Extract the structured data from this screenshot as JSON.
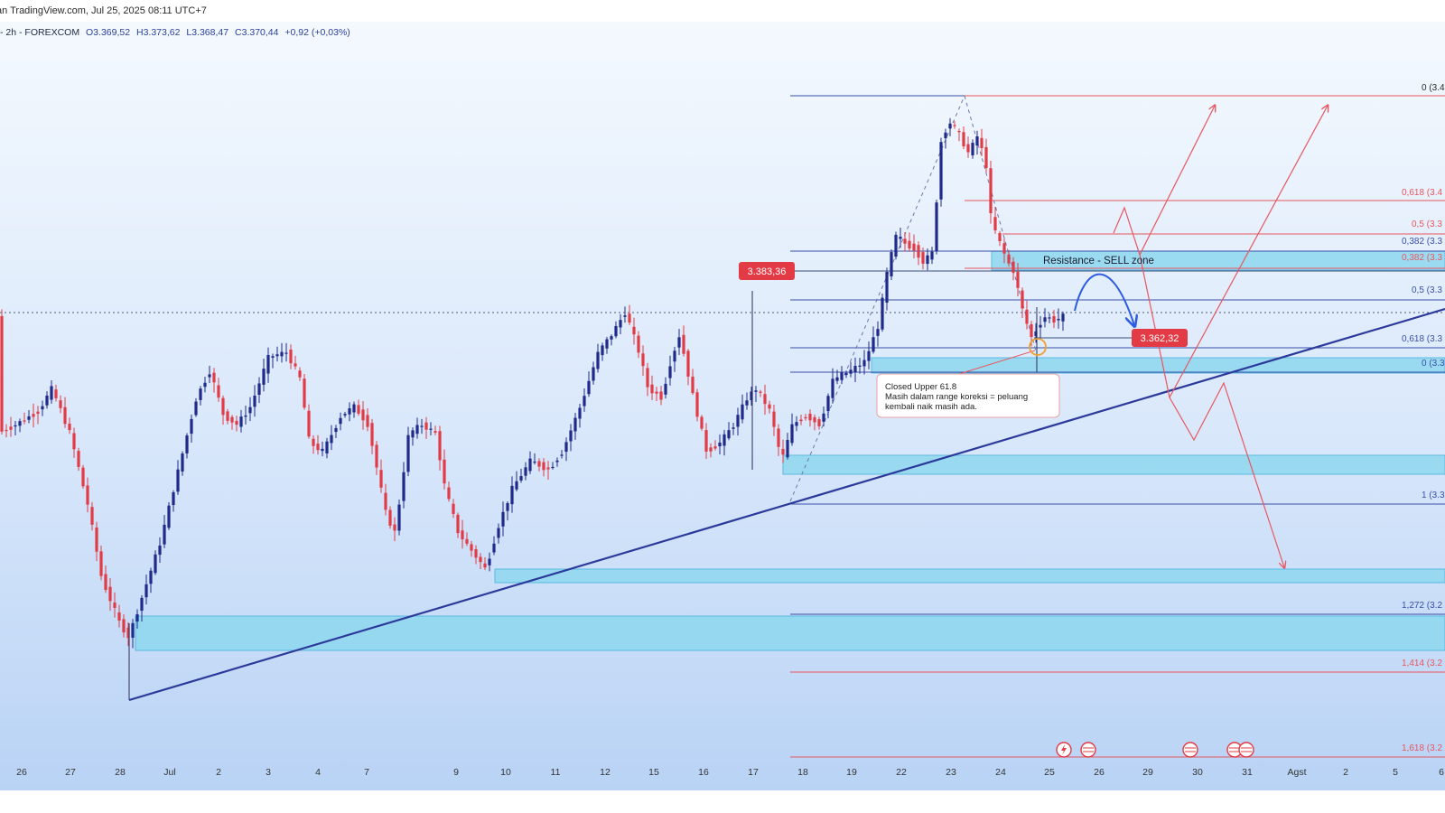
{
  "header": {
    "source_text": "an TradingView.com, Jul 25, 2025 08:11 UTC+7"
  },
  "legend": {
    "symbol_text": "- 2h - FOREXCOM",
    "open": "O3.369,52",
    "high": "H3.373,62",
    "low": "L3.368,47",
    "close": "C3.370,44",
    "change": "+0,92 (+0,03%)"
  },
  "price_badges": {
    "upper": "3.383,36",
    "current": "3.362,32"
  },
  "annotations": {
    "zone_label": "Resistance - SELL zone",
    "note_line1": "Closed Upper 61.8",
    "note_line2": "Masih dalam range koreksi = peluang",
    "note_line3": "kembali naik masih ada."
  },
  "fib_labels": {
    "upper_0": "0 (3.4",
    "upper_0618": "0,618 (3.4",
    "upper_05": "0,5 (3.3",
    "upper_0382": "0,382 (3.3",
    "lower_0382": "0,382 (3.3",
    "lower_05": "0,5 (3.3",
    "lower_0618": "0,618 (3.3",
    "lower_0": "0 (3.3",
    "lower_1": "1 (3.3",
    "ext_1272": "1,272 (3.2",
    "ext_1414": "1,414 (3.2",
    "ext_1618": "1,618 (3.2"
  },
  "x_axis": [
    "26",
    "27",
    "28",
    "Jul",
    "2",
    "3",
    "4",
    "7",
    "9",
    "10",
    "11",
    "12",
    "15",
    "16",
    "17",
    "18",
    "19",
    "22",
    "23",
    "24",
    "25",
    "26",
    "29",
    "30",
    "31",
    "Agst",
    "2",
    "5",
    "6"
  ],
  "colors": {
    "bull": "#1f2a8a",
    "bear": "#e23b45",
    "zone": "#7fd0ec",
    "trend": "#2b3a9a",
    "fib_red": "#e8565e",
    "fib_blue": "#3a4fa8",
    "arrow_blue": "#2d5be3"
  }
}
